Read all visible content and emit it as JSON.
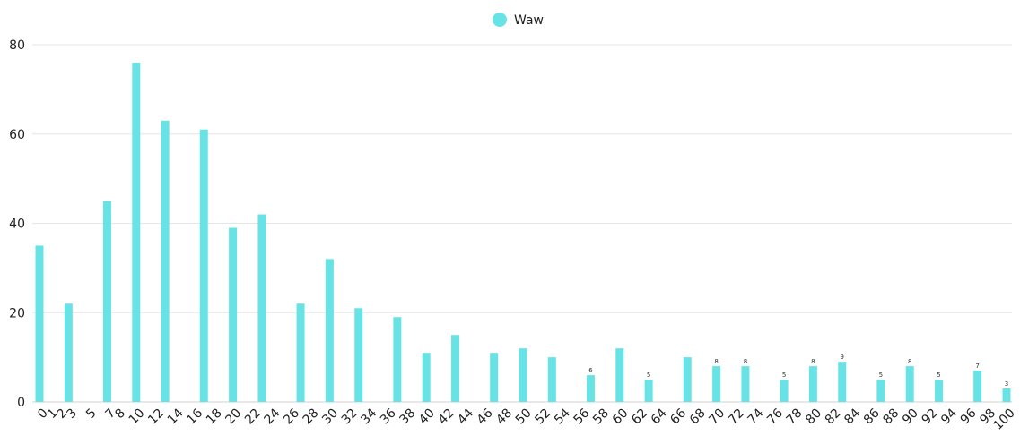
{
  "chart_data": {
    "type": "bar",
    "legend": "top-center",
    "grid": true,
    "ylim": [
      0,
      80
    ],
    "yticks": [
      0,
      20,
      40,
      60,
      80
    ],
    "series": [
      {
        "name": "Waw",
        "color": "#67e3e6",
        "points": [
          {
            "x": 0,
            "y": 35
          },
          {
            "x": 3,
            "y": 22
          },
          {
            "x": 7,
            "y": 45
          },
          {
            "x": 10,
            "y": 76
          },
          {
            "x": 13,
            "y": 63
          },
          {
            "x": 17,
            "y": 61
          },
          {
            "x": 20,
            "y": 39
          },
          {
            "x": 23,
            "y": 42
          },
          {
            "x": 27,
            "y": 22
          },
          {
            "x": 30,
            "y": 32
          },
          {
            "x": 33,
            "y": 21
          },
          {
            "x": 37,
            "y": 19
          },
          {
            "x": 40,
            "y": 11
          },
          {
            "x": 43,
            "y": 15
          },
          {
            "x": 47,
            "y": 11
          },
          {
            "x": 50,
            "y": 12
          },
          {
            "x": 53,
            "y": 10
          },
          {
            "x": 57,
            "y": 6,
            "label": "6"
          },
          {
            "x": 60,
            "y": 12
          },
          {
            "x": 63,
            "y": 5,
            "label": "5"
          },
          {
            "x": 67,
            "y": 10
          },
          {
            "x": 70,
            "y": 8,
            "label": "8"
          },
          {
            "x": 73,
            "y": 8,
            "label": "8"
          },
          {
            "x": 77,
            "y": 5,
            "label": "5"
          },
          {
            "x": 80,
            "y": 8,
            "label": "8"
          },
          {
            "x": 83,
            "y": 9,
            "label": "9"
          },
          {
            "x": 87,
            "y": 5,
            "label": "5"
          },
          {
            "x": 90,
            "y": 8,
            "label": "8"
          },
          {
            "x": 93,
            "y": 5,
            "label": "5"
          },
          {
            "x": 97,
            "y": 7,
            "label": "7"
          },
          {
            "x": 100,
            "y": 3,
            "label": "3"
          }
        ]
      }
    ],
    "xtick_labels": [
      "0",
      "1",
      "2",
      "3",
      "5",
      "7",
      "8",
      "10",
      "12",
      "14",
      "16",
      "18",
      "20",
      "22",
      "24",
      "26",
      "28",
      "30",
      "32",
      "34",
      "36",
      "38",
      "40",
      "42",
      "44",
      "46",
      "48",
      "50",
      "52",
      "54",
      "56",
      "58",
      "60",
      "62",
      "64",
      "66",
      "68",
      "70",
      "72",
      "74",
      "76",
      "78",
      "80",
      "82",
      "84",
      "86",
      "88",
      "90",
      "92",
      "94",
      "96",
      "98",
      "100"
    ]
  }
}
